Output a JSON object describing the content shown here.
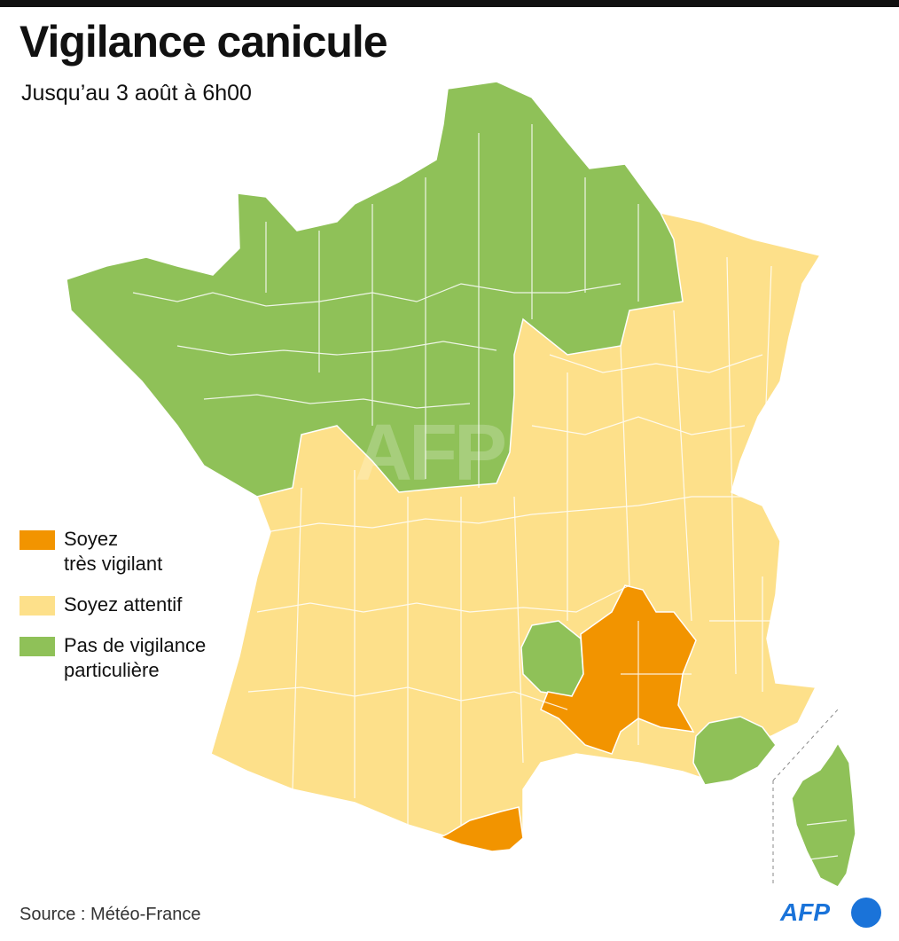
{
  "title": "Vigilance canicule",
  "subtitle": "Jusqu’au 3 août à 6h00",
  "source": "Source : Météo-France",
  "logo_text": "AFP",
  "watermark": "AFP",
  "colors": {
    "orange": "#f29400",
    "yellow": "#fde08a",
    "green": "#8fc158",
    "border": "#ffffff"
  },
  "legend": [
    {
      "label": "Soyez\ntrès vigilant",
      "color": "#f29400"
    },
    {
      "label": "Soyez attentif",
      "color": "#fde08a"
    },
    {
      "label": "Pas de vigilance\nparticulière",
      "color": "#8fc158"
    }
  ],
  "regions": [
    {
      "name": "north-west-and-north",
      "level": "Pas de vigilance particulière"
    },
    {
      "name": "south-west-and-centre",
      "level": "Soyez attentif"
    },
    {
      "name": "east",
      "level": "Soyez attentif"
    },
    {
      "name": "lozere",
      "level": "Pas de vigilance particulière"
    },
    {
      "name": "rhone-valley",
      "level": "Soyez très vigilant"
    },
    {
      "name": "pyrenees-orientales",
      "level": "Soyez très vigilant"
    },
    {
      "name": "var",
      "level": "Pas de vigilance particulière"
    },
    {
      "name": "corsica",
      "level": "Pas de vigilance particulière"
    }
  ]
}
